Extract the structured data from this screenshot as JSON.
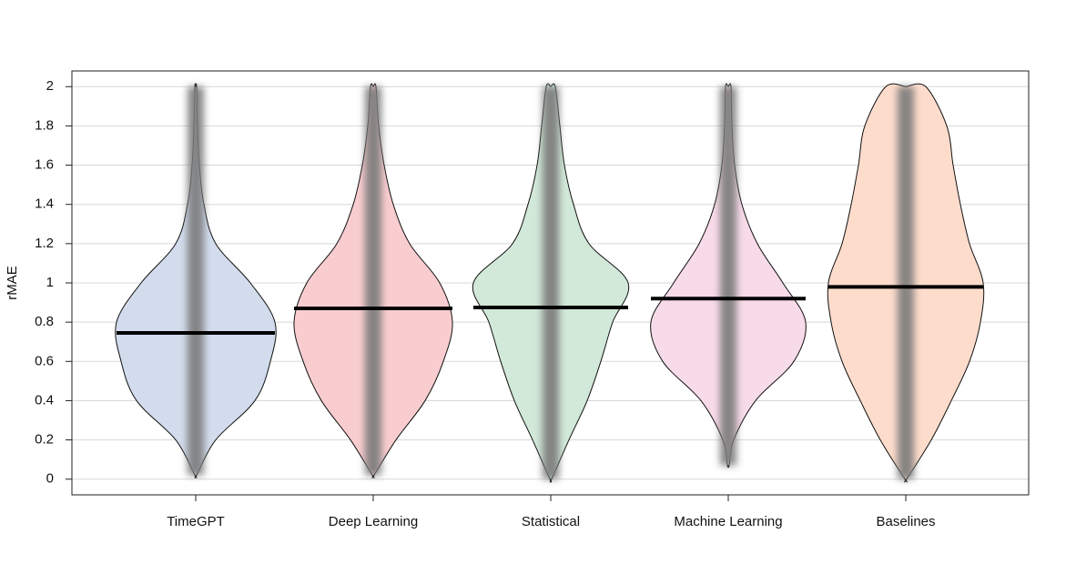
{
  "chart_data": {
    "type": "violin",
    "y_label": "rMAE",
    "ylim": [
      -0.08,
      2.08
    ],
    "yticks": [
      0,
      0.2,
      0.4,
      0.6,
      0.8,
      1,
      1.2,
      1.4,
      1.6,
      1.8,
      2
    ],
    "grid": true,
    "series": [
      {
        "name": "TimeGPT",
        "color": "#d2dcec",
        "median": 0.745,
        "y": [
          0.02,
          0.2,
          0.4,
          0.6,
          0.8,
          1.0,
          1.2,
          1.4,
          1.6,
          1.8,
          2.0
        ],
        "density": [
          1,
          22,
          65,
          82,
          87,
          60,
          22,
          9,
          4,
          2,
          1
        ]
      },
      {
        "name": "Deep Learning",
        "color": "#f9cdd0",
        "median": 0.87,
        "y": [
          0.02,
          0.2,
          0.4,
          0.6,
          0.8,
          1.0,
          1.2,
          1.4,
          1.6,
          1.8,
          2.0
        ],
        "density": [
          1,
          25,
          57,
          77,
          87,
          73,
          40,
          22,
          12,
          6,
          3
        ]
      },
      {
        "name": "Statistical",
        "color": "#d2e8d8",
        "median": 0.875,
        "y": [
          0,
          0.2,
          0.4,
          0.6,
          0.8,
          1.0,
          1.2,
          1.4,
          1.6,
          1.8,
          2.0
        ],
        "density": [
          1,
          20,
          40,
          55,
          68,
          85,
          42,
          25,
          15,
          10,
          5
        ]
      },
      {
        "name": "Machine Learning",
        "color": "#f8dbe8",
        "median": 0.92,
        "y": [
          0.07,
          0.2,
          0.4,
          0.6,
          0.8,
          1.0,
          1.2,
          1.4,
          1.6,
          1.8,
          2.0
        ],
        "density": [
          1,
          6,
          30,
          72,
          85,
          60,
          32,
          15,
          7,
          4,
          3
        ]
      },
      {
        "name": "Baselines",
        "color": "#fddccc",
        "median": 0.98,
        "y": [
          0,
          0.2,
          0.4,
          0.6,
          0.8,
          1.0,
          1.2,
          1.4,
          1.6,
          1.8,
          2.0
        ],
        "density": [
          1,
          28,
          50,
          70,
          82,
          85,
          70,
          60,
          52,
          45,
          22
        ]
      }
    ]
  }
}
